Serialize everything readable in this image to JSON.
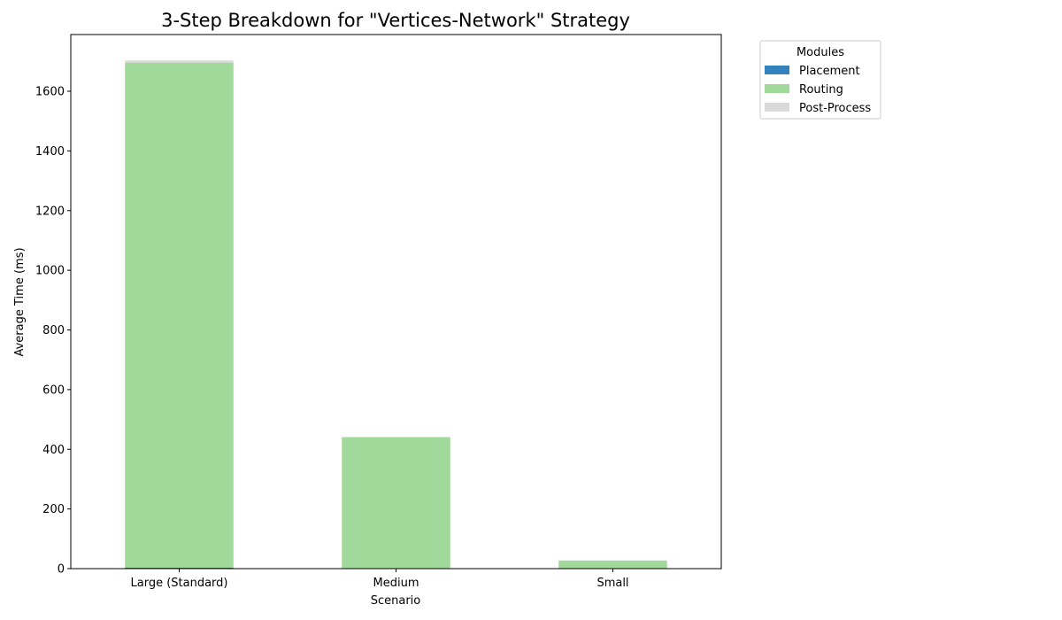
{
  "chart_data": {
    "type": "bar",
    "stacked": true,
    "title": "3-Step Breakdown for \"Vertices-Network\" Strategy",
    "xlabel": "Scenario",
    "ylabel": "Average Time (ms)",
    "categories": [
      "Large (Standard)",
      "Medium",
      "Small"
    ],
    "series": [
      {
        "name": "Placement",
        "values": [
          3,
          0.5,
          0.2
        ],
        "color": "#3182bd"
      },
      {
        "name": "Routing",
        "values": [
          1693,
          440,
          27
        ],
        "color": "#a1d99b"
      },
      {
        "name": "Post-Process",
        "values": [
          7,
          1,
          0.3
        ],
        "color": "#d9d9d9"
      }
    ],
    "ylim": [
      0,
      1790
    ],
    "yticks": [
      0,
      200,
      400,
      600,
      800,
      1000,
      1200,
      1400,
      1600
    ],
    "grid": false,
    "legend": {
      "title": "Modules",
      "placement": "outside-top-right"
    }
  }
}
